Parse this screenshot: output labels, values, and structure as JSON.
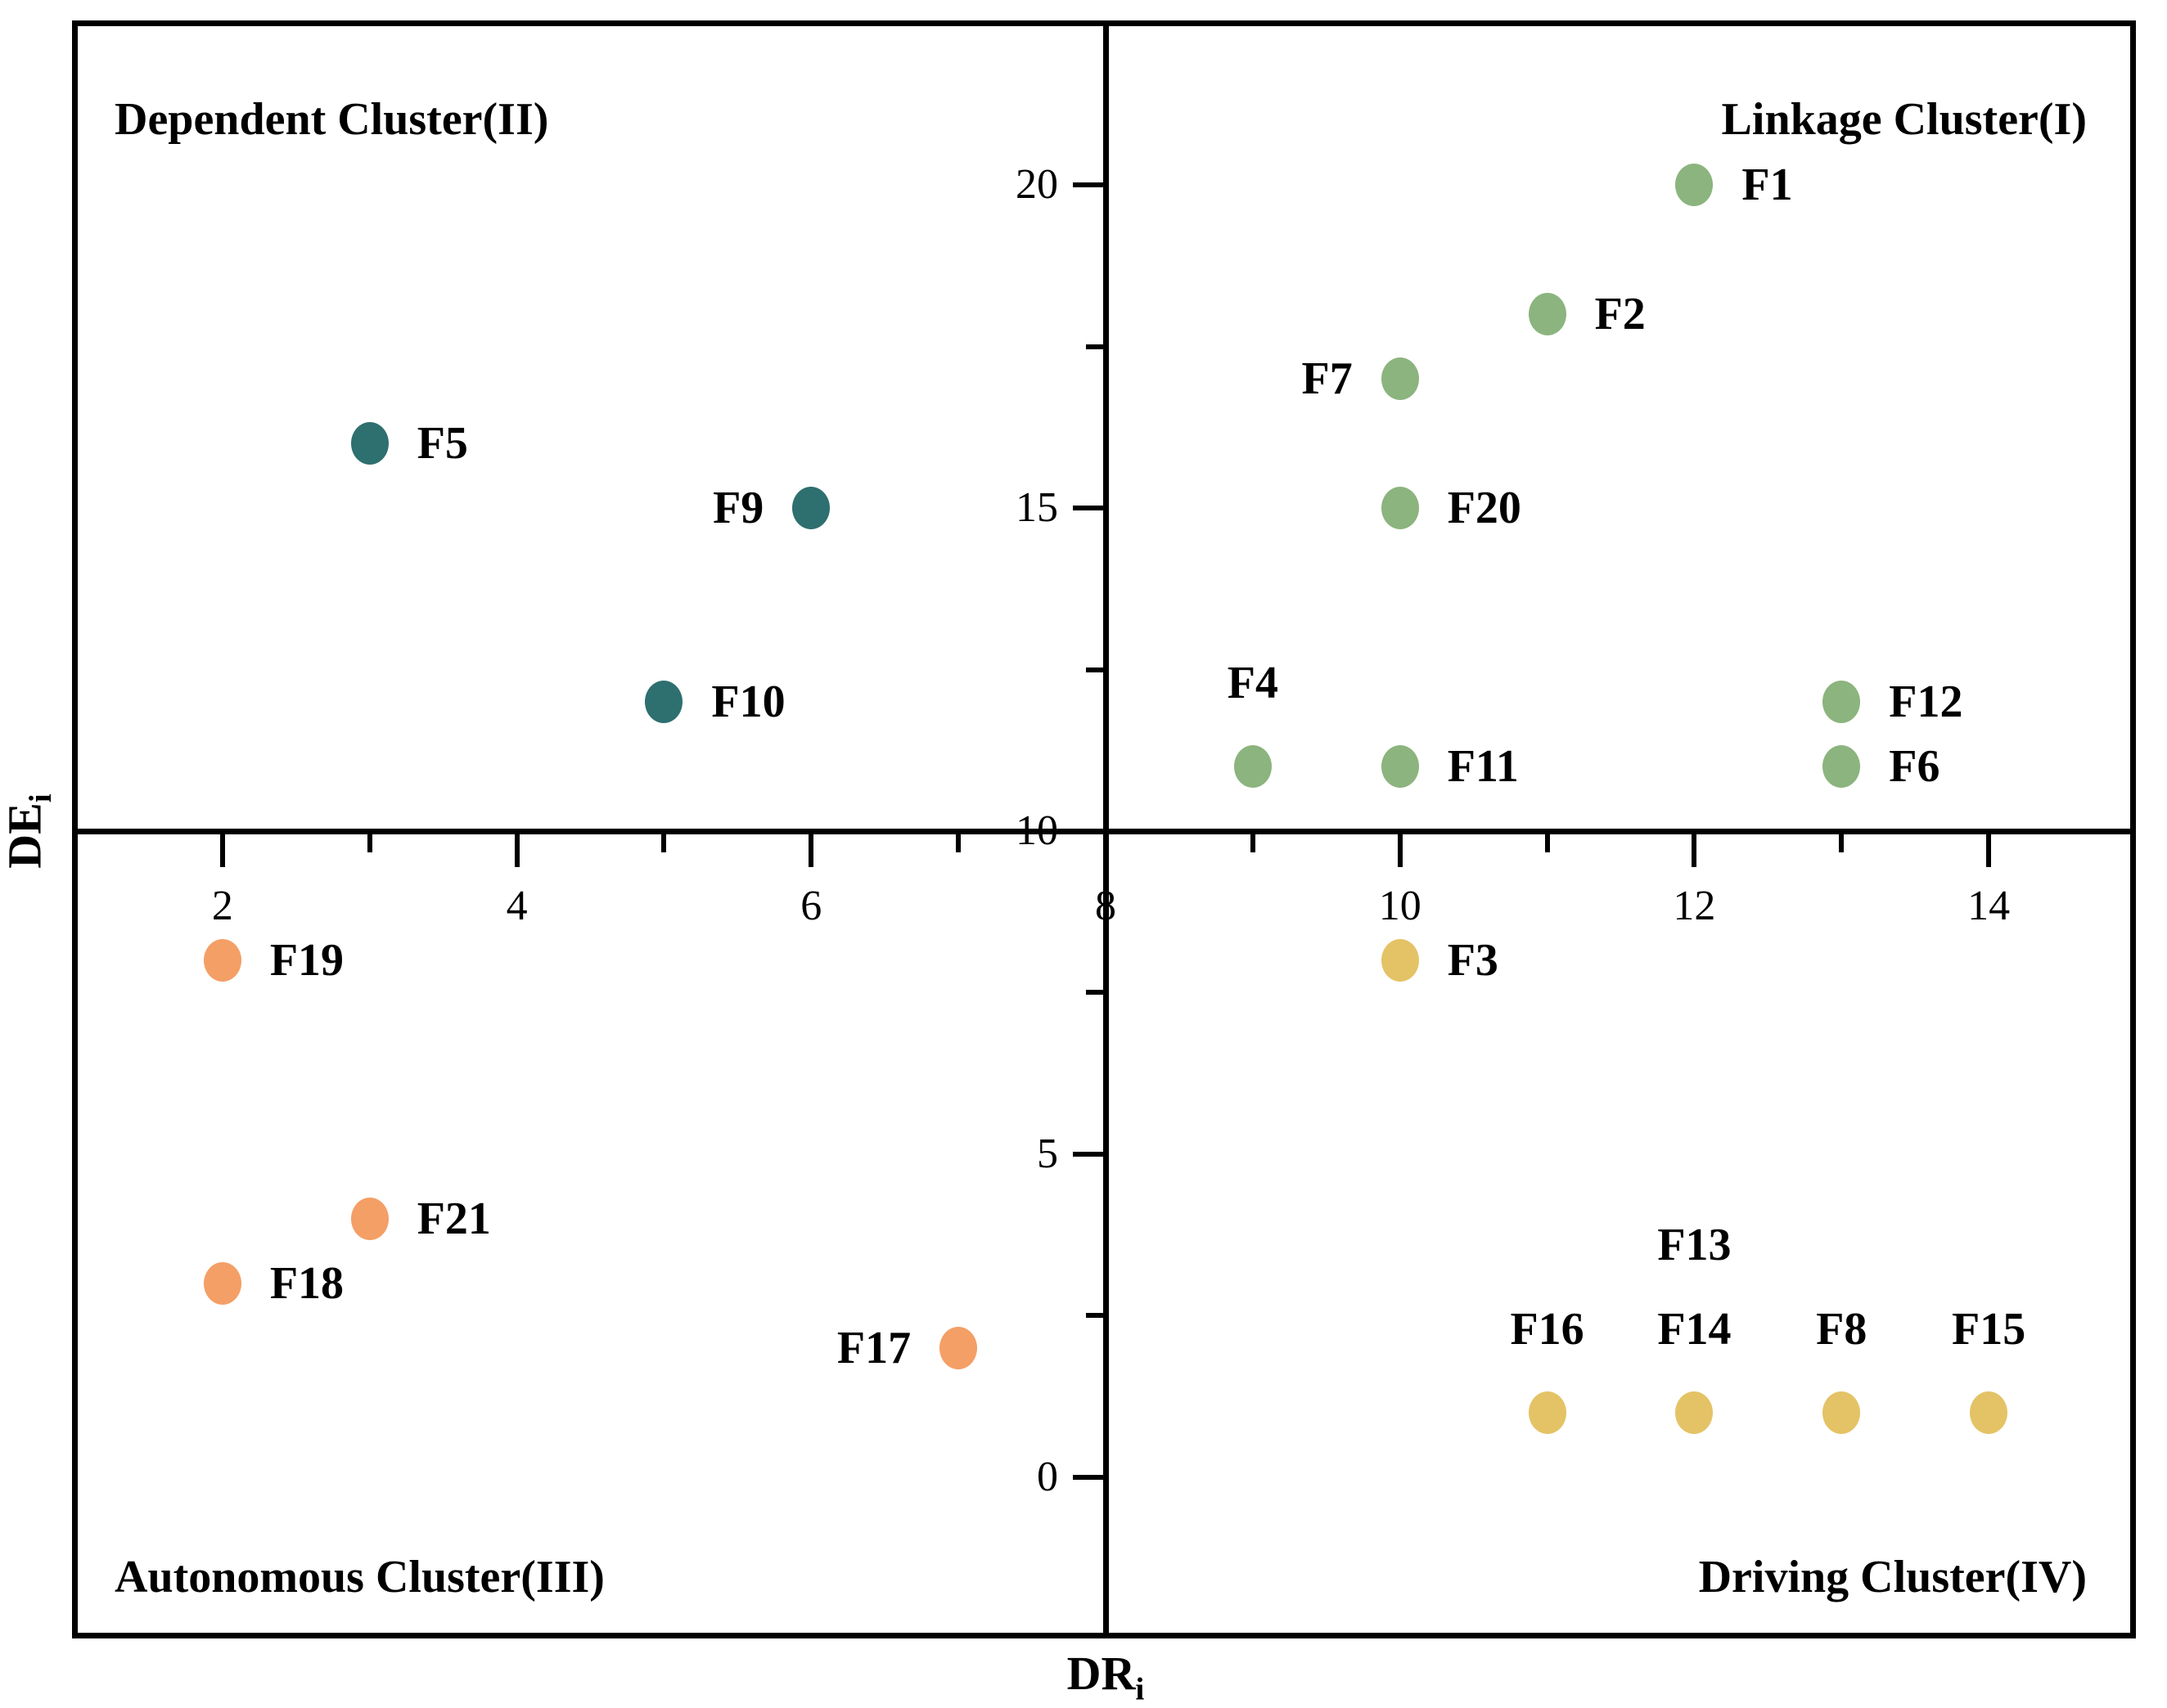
{
  "chart_data": {
    "type": "scatter",
    "title": "",
    "xlabel": "DR",
    "xlabel_sub": "i",
    "ylabel": "DE",
    "ylabel_sub": "i",
    "x_range": [
      1,
      15
    ],
    "y_range": [
      -2.5,
      22.5
    ],
    "axis_cross": {
      "x": 8,
      "y": 10
    },
    "grid": false,
    "x_ticks_labeled": [
      2,
      4,
      6,
      8,
      10,
      12,
      14
    ],
    "x_ticks_minor": [
      3,
      5,
      7,
      9,
      11,
      13
    ],
    "y_ticks_labeled": [
      0,
      5,
      10,
      15,
      20
    ],
    "y_ticks_minor": [
      2.5,
      7.5,
      12.5,
      17.5
    ],
    "quadrant_labels": [
      {
        "text": "Dependent Cluster(II)",
        "position": "top-left"
      },
      {
        "text": "Linkage Cluster(I)",
        "position": "top-right"
      },
      {
        "text": "Autonomous Cluster(III)",
        "position": "bottom-left"
      },
      {
        "text": "Driving Cluster(IV)",
        "position": "bottom-right"
      }
    ],
    "series": [
      {
        "name": "Linkage Cluster(I)",
        "color": "#8CB47E",
        "points": [
          {
            "id": "F1",
            "x": 12,
            "y": 20,
            "label_side": "right"
          },
          {
            "id": "F2",
            "x": 11,
            "y": 18,
            "label_side": "right"
          },
          {
            "id": "F7",
            "x": 10,
            "y": 17,
            "label_side": "left"
          },
          {
            "id": "F20",
            "x": 10,
            "y": 15,
            "label_side": "right"
          },
          {
            "id": "F4",
            "x": 9,
            "y": 11,
            "label_side": "above"
          },
          {
            "id": "F11",
            "x": 10,
            "y": 11,
            "label_side": "right"
          },
          {
            "id": "F12",
            "x": 13,
            "y": 12,
            "label_side": "right"
          },
          {
            "id": "F6",
            "x": 13,
            "y": 11,
            "label_side": "right"
          }
        ]
      },
      {
        "name": "Dependent Cluster(II)",
        "color": "#2E6F6F",
        "points": [
          {
            "id": "F5",
            "x": 3,
            "y": 16,
            "label_side": "right"
          },
          {
            "id": "F9",
            "x": 6,
            "y": 15,
            "label_side": "left"
          },
          {
            "id": "F10",
            "x": 5,
            "y": 12,
            "label_side": "right"
          }
        ]
      },
      {
        "name": "Autonomous Cluster(III)",
        "color": "#F49F66",
        "points": [
          {
            "id": "F19",
            "x": 2,
            "y": 8,
            "label_side": "right"
          },
          {
            "id": "F21",
            "x": 3,
            "y": 4,
            "label_side": "right"
          },
          {
            "id": "F18",
            "x": 2,
            "y": 3,
            "label_side": "right"
          },
          {
            "id": "F17",
            "x": 7,
            "y": 2,
            "label_side": "left"
          }
        ]
      },
      {
        "name": "Driving Cluster(IV)",
        "color": "#E4C366",
        "points": [
          {
            "id": "F3",
            "x": 10,
            "y": 8,
            "label_side": "right"
          },
          {
            "id": "F16",
            "x": 11,
            "y": 1,
            "label_side": "above"
          },
          {
            "id": "F13",
            "x": 12,
            "y": 1,
            "label_side": "above2"
          },
          {
            "id": "F14",
            "x": 12,
            "y": 1,
            "label_side": "above"
          },
          {
            "id": "F8",
            "x": 13,
            "y": 1,
            "label_side": "above"
          },
          {
            "id": "F15",
            "x": 14,
            "y": 1,
            "label_side": "above"
          }
        ]
      }
    ]
  }
}
